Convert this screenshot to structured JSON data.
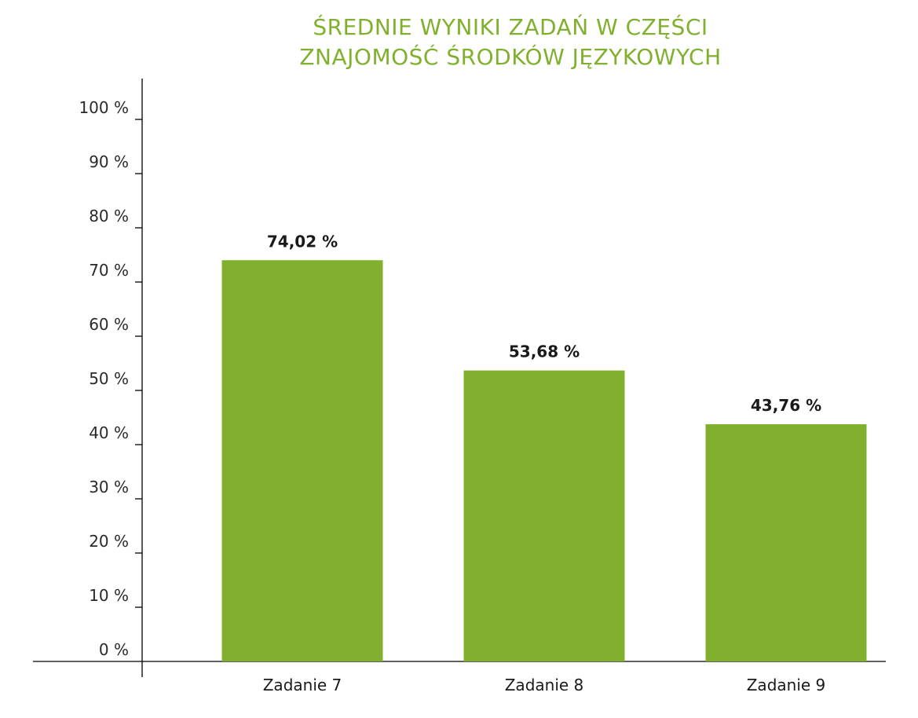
{
  "chart_data": {
    "type": "bar",
    "title_lines": [
      "ŚREDNIE WYNIKI ZADAŃ W CZĘŚCI",
      "ZNAJOMOŚĆ ŚRODKÓW JĘZYKOWYCH"
    ],
    "title": "ŚREDNIE WYNIKI ZADAŃ W CZĘŚCI ZNAJOMOŚĆ ŚRODKÓW JĘZYKOWYCH",
    "categories": [
      "Zadanie 7",
      "Zadanie 8",
      "Zadanie 9"
    ],
    "values": [
      74.02,
      53.68,
      43.76
    ],
    "data_labels": [
      "74,02 %",
      "53,68 %",
      "43,76 %"
    ],
    "y_ticks": [
      0,
      10,
      20,
      30,
      40,
      50,
      60,
      70,
      80,
      90,
      100
    ],
    "y_tick_labels": [
      "0 %",
      "10 %",
      "20 %",
      "30 %",
      "40 %",
      "50 %",
      "60 %",
      "70 %",
      "80 %",
      "90 %",
      "100 %"
    ],
    "ylim": [
      0,
      100
    ],
    "xlabel": "",
    "ylabel": "",
    "grid": false,
    "legend": "none",
    "bar_color": "#80b02d",
    "title_color": "#80b02d",
    "axis_color": "#000000"
  }
}
